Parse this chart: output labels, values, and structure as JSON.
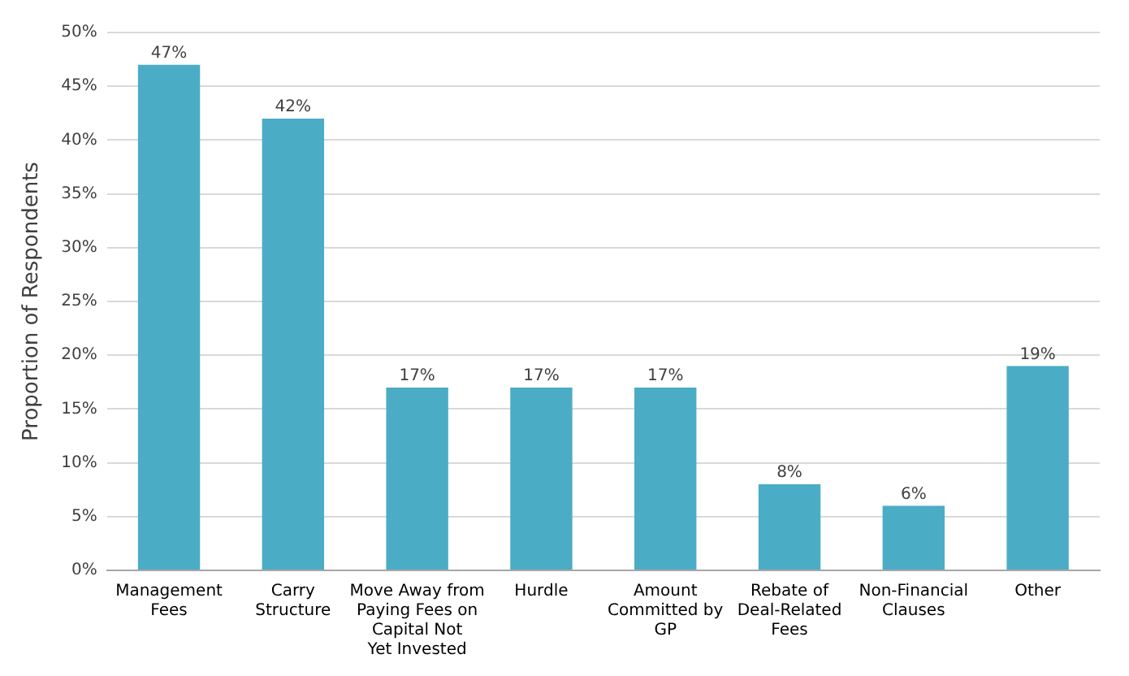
{
  "chart_data": {
    "type": "bar",
    "ylabel": "Proportion of Respondents",
    "categories": [
      "Management Fees",
      "Carry Structure",
      "Move Away from Paying Fees on Capital Not Yet Invested",
      "Hurdle",
      "Amount Committed by GP",
      "Rebate of Deal-Related Fees",
      "Non-Financial Clauses",
      "Other"
    ],
    "values": [
      47,
      42,
      17,
      17,
      17,
      8,
      6,
      19
    ],
    "value_labels": [
      "47%",
      "42%",
      "17%",
      "17%",
      "17%",
      "8%",
      "6%",
      "19%"
    ],
    "color": "#4bacc6",
    "ylim": [
      0,
      50
    ],
    "yticks": [
      {
        "value": 0,
        "label": "0%"
      },
      {
        "value": 5,
        "label": "5%"
      },
      {
        "value": 10,
        "label": "10%"
      },
      {
        "value": 15,
        "label": "15%"
      },
      {
        "value": 20,
        "label": "20%"
      },
      {
        "value": 25,
        "label": "25%"
      },
      {
        "value": 30,
        "label": "30%"
      },
      {
        "value": 35,
        "label": "35%"
      },
      {
        "value": 40,
        "label": "40%"
      },
      {
        "value": 45,
        "label": "45%"
      },
      {
        "value": 50,
        "label": "50%"
      }
    ],
    "grid": "y"
  }
}
